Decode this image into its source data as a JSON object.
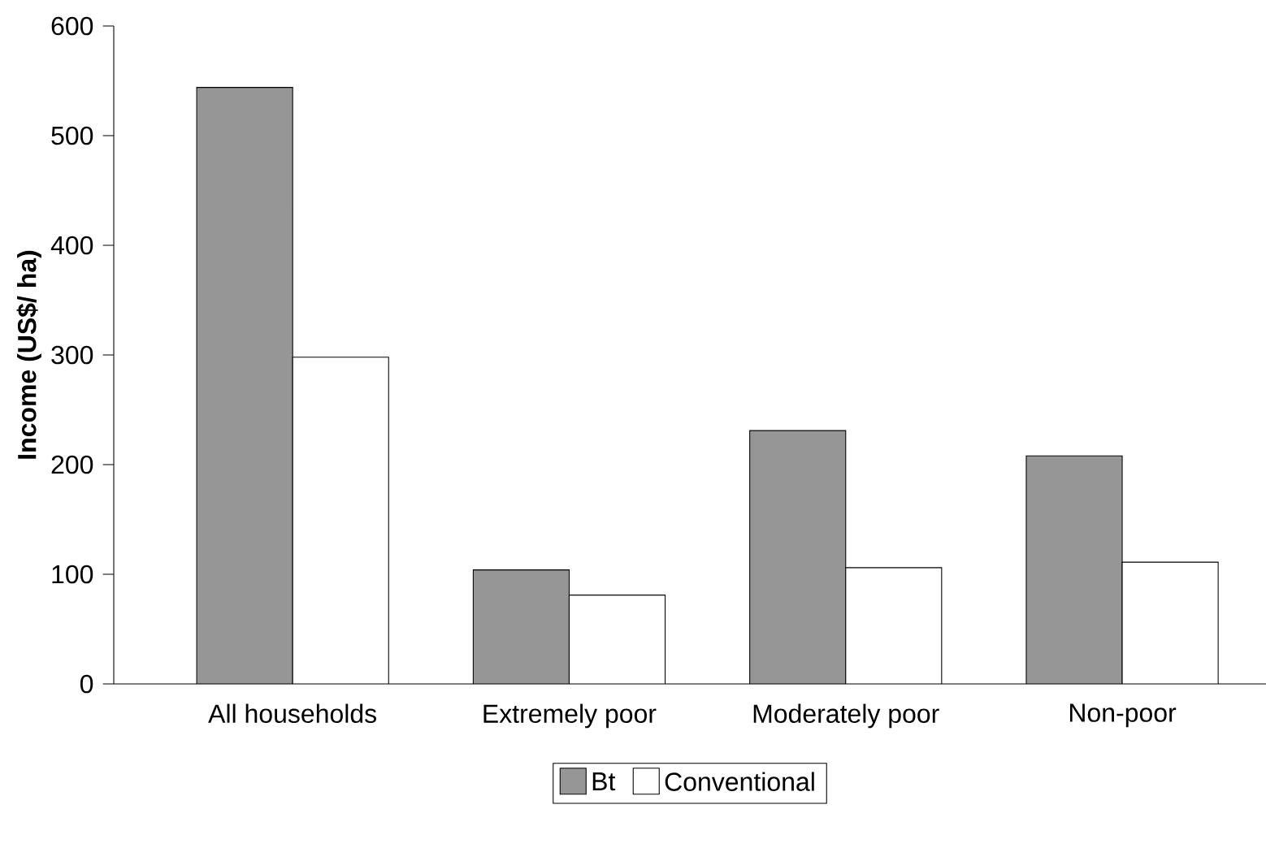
{
  "chart_data": {
    "type": "bar",
    "ylabel": "Income (US$/ ha)",
    "categories": [
      "All households",
      "Extremely poor",
      "Moderately poor",
      "Non-poor"
    ],
    "series": [
      {
        "name": "Bt",
        "color": "#969696",
        "values": [
          544,
          104,
          231,
          208
        ]
      },
      {
        "name": "Conventional",
        "color": "#ffffff",
        "values": [
          298,
          81,
          106,
          111
        ]
      }
    ],
    "ylim": [
      0,
      600
    ],
    "yticks": [
      0,
      100,
      200,
      300,
      400,
      500,
      600
    ],
    "grid": false,
    "legend": "bottom"
  }
}
